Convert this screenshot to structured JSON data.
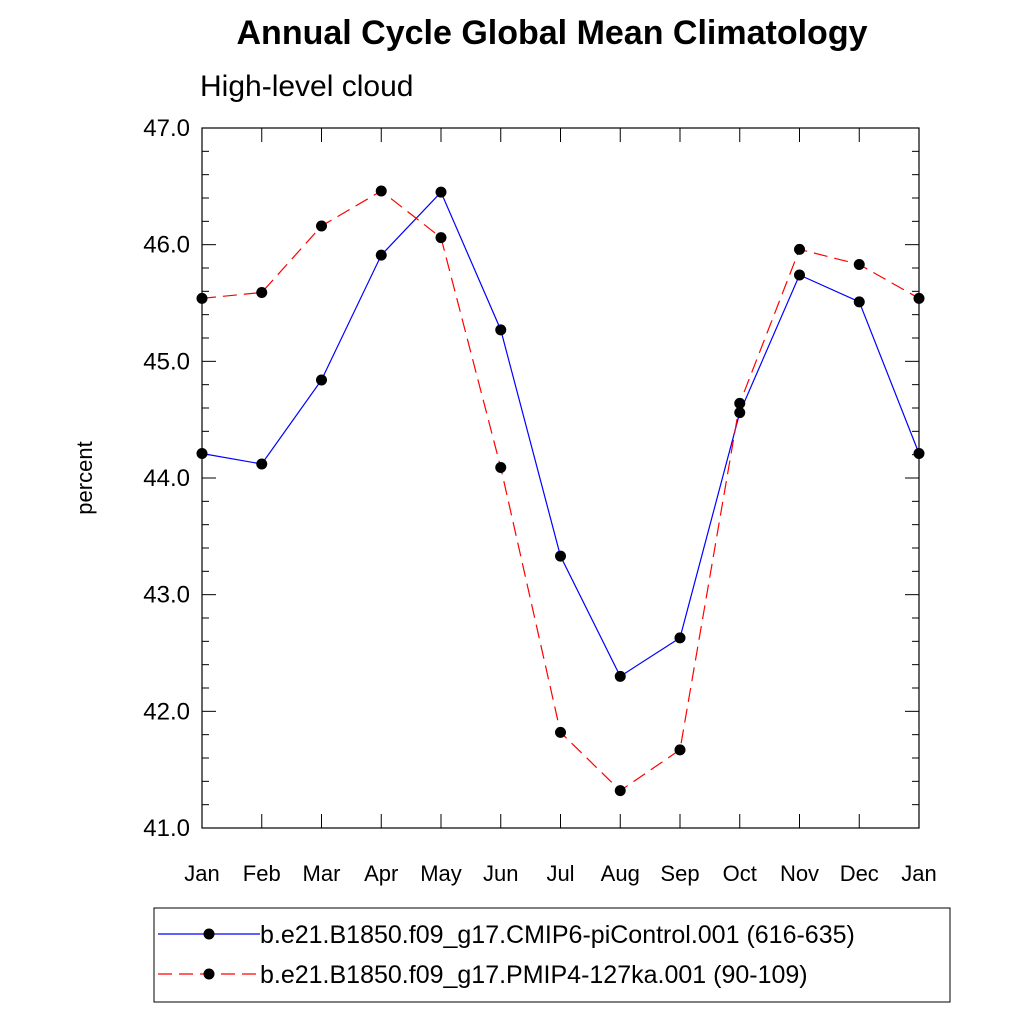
{
  "chart_data": {
    "type": "line",
    "title": "Annual Cycle Global Mean Climatology",
    "subtitle": "High-level cloud",
    "xlabel": "",
    "ylabel": "percent",
    "categories": [
      "Jan",
      "Feb",
      "Mar",
      "Apr",
      "May",
      "Jun",
      "Jul",
      "Aug",
      "Sep",
      "Oct",
      "Nov",
      "Dec",
      "Jan"
    ],
    "ylim": [
      41.0,
      47.0
    ],
    "yticks": [
      "41.0",
      "42.0",
      "43.0",
      "44.0",
      "45.0",
      "46.0",
      "47.0"
    ],
    "grid": false,
    "legend_position": "bottom",
    "series": [
      {
        "name": "b.e21.B1850.f09_g17.CMIP6-piControl.001 (616-635)",
        "color": "#0000ff",
        "line_style": "solid",
        "marker": "filled-circle",
        "values": [
          44.21,
          44.12,
          44.84,
          45.91,
          46.45,
          45.27,
          43.33,
          42.3,
          42.63,
          44.56,
          45.74,
          45.51,
          44.21
        ]
      },
      {
        "name": "b.e21.B1850.f09_g17.PMIP4-127ka.001 (90-109)",
        "color": "#ff0000",
        "line_style": "dashed",
        "marker": "filled-circle",
        "values": [
          45.54,
          45.59,
          46.16,
          46.46,
          46.06,
          44.09,
          41.82,
          41.32,
          41.67,
          44.64,
          45.96,
          45.83,
          45.54
        ]
      }
    ]
  }
}
